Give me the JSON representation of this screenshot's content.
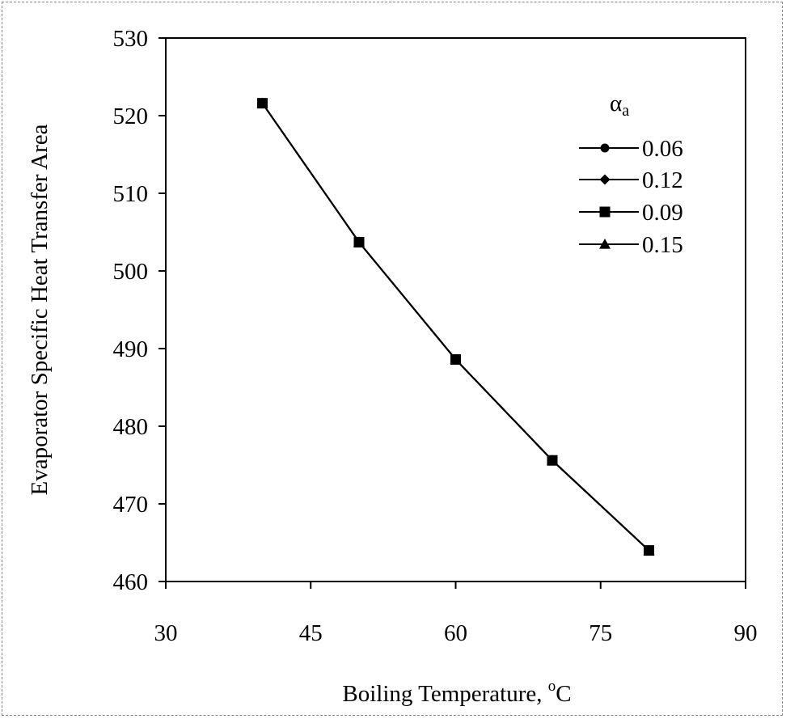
{
  "chart_data": {
    "type": "line",
    "title": "",
    "xlabel": "Boiling Temperature, °C",
    "xlabel_parts": {
      "text": "Boiling Temperature, ",
      "sup": "o",
      "unit": "C"
    },
    "ylabel": "Evaporator Specific Heat Transfer Area",
    "xlim": [
      30,
      90
    ],
    "ylim": [
      460,
      530
    ],
    "xticks": [
      30,
      45,
      60,
      75,
      90
    ],
    "yticks": [
      460,
      470,
      480,
      490,
      500,
      510,
      520,
      530
    ],
    "grid": false,
    "legend": {
      "title": "α",
      "title_sub": "a",
      "placement": "upper-right-inside"
    },
    "x": [
      40,
      50,
      60,
      70,
      80
    ],
    "series": [
      {
        "name": "0.06",
        "marker": "circle",
        "values": [
          521.6,
          503.7,
          488.6,
          475.6,
          464.0
        ]
      },
      {
        "name": "0.12",
        "marker": "diamond",
        "values": [
          521.6,
          503.7,
          488.6,
          475.6,
          464.0
        ]
      },
      {
        "name": "0.09",
        "marker": "square",
        "values": [
          521.6,
          503.7,
          488.6,
          475.6,
          464.0
        ]
      },
      {
        "name": "0.15",
        "marker": "triangle",
        "values": [
          521.6,
          503.7,
          488.6,
          475.6,
          464.0
        ]
      }
    ],
    "colors": {
      "line": "#000000",
      "marker": "#000000",
      "axis": "#000000"
    }
  }
}
